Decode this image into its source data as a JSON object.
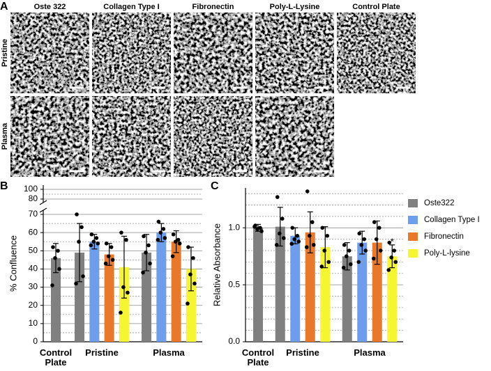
{
  "panel_a": {
    "label": "A",
    "columns": [
      "Oste 322",
      "Collagen Type I",
      "Fibronectin",
      "Poly-L-Lysine",
      "Control Plate"
    ],
    "rows": [
      "Pristine",
      "Plasma"
    ]
  },
  "chart_data": [
    {
      "type": "bar",
      "panel_label": "B",
      "y_label": "% Confluence",
      "categories": [
        "Control Plate",
        "Pristine",
        "Plasma"
      ],
      "ylim": [
        0,
        100
      ],
      "y_segments": [
        [
          0,
          70
        ],
        [
          80,
          100
        ]
      ],
      "yticks": [
        0,
        10,
        20,
        30,
        40,
        50,
        60,
        70,
        80,
        100
      ],
      "minor_gridlines": [
        5,
        15,
        25,
        35,
        45,
        55,
        65,
        90
      ],
      "grid": true,
      "series": [
        {
          "color": "#808080",
          "values": [
            46,
            49,
            49
          ],
          "errors": [
            8,
            16,
            10
          ],
          "points": [
            [
              52,
              50,
              46,
              40,
              31
            ],
            [
              70,
              63,
              55,
              36,
              32
            ],
            [
              58,
              53,
              49,
              43,
              38
            ]
          ]
        },
        {
          "color": "#6d9eeb",
          "values": [
            null,
            55,
            60
          ],
          "errors": [
            null,
            4,
            5
          ],
          "points": [
            null,
            [
              59,
              57,
              55,
              54,
              53
            ],
            [
              66,
              62,
              60,
              57,
              56
            ]
          ]
        },
        {
          "color": "#e8782a",
          "values": [
            null,
            48,
            55
          ],
          "errors": [
            null,
            6,
            6
          ],
          "points": [
            null,
            [
              54,
              52,
              47,
              45,
              43
            ],
            [
              59,
              56,
              55,
              54,
              47
            ]
          ]
        },
        {
          "color": "#f5f532",
          "values": [
            null,
            41,
            40
          ],
          "errors": [
            null,
            17,
            12
          ],
          "points": [
            null,
            [
              60,
              56,
              30,
              27,
              16
            ],
            [
              52,
              46,
              37,
              32,
              21
            ]
          ]
        }
      ]
    },
    {
      "type": "bar",
      "panel_label": "C",
      "y_label": "Relative Absorbance",
      "categories": [
        "Control Plate",
        "Pristine",
        "Plasma"
      ],
      "ylim": [
        0,
        1.35
      ],
      "yticks": [
        {
          "value": 0,
          "label": "0.0"
        },
        0.5,
        {
          "value": 1,
          "label": "1.0"
        }
      ],
      "minor_gridlines": [
        0.1,
        0.2,
        0.3,
        0.4,
        0.6,
        0.7,
        0.8,
        0.9,
        1.1,
        1.2,
        1.3
      ],
      "grid": true,
      "legend": "right",
      "annotations": [
        "*"
      ],
      "series": [
        {
          "name": "Oste322",
          "color": "#808080",
          "values": [
            1.0,
            1.01,
            0.75
          ],
          "errors": [
            0.03,
            0.17,
            0.12
          ],
          "points": [
            [
              1.02,
              1.0,
              0.99,
              0.97,
              1.01
            ],
            [
              1.27,
              1.08,
              0.95,
              0.91,
              0.85
            ],
            [
              0.85,
              0.8,
              0.75,
              0.68,
              0.65
            ]
          ]
        },
        {
          "name": "Collagen Type I",
          "color": "#6d9eeb",
          "values": [
            null,
            0.93,
            0.87
          ],
          "errors": [
            null,
            0.07,
            0.1
          ],
          "points": [
            null,
            [
              1.0,
              0.93,
              0.9,
              0.88,
              0.86
            ],
            [
              0.95,
              0.9,
              0.85,
              0.8,
              0.7
            ]
          ]
        },
        {
          "name": "Fibronectin",
          "color": "#e8782a",
          "values": [
            null,
            0.96,
            0.87
          ],
          "errors": [
            null,
            0.18,
            0.19
          ],
          "points": [
            null,
            [
              1.32,
              1.05,
              0.93,
              0.85,
              0.83
            ],
            [
              1.05,
              1.0,
              0.9,
              0.8,
              0.73
            ]
          ]
        },
        {
          "name": "Poly-L-lysine",
          "color": "#f5f532",
          "values": [
            null,
            0.83,
            0.75
          ],
          "errors": [
            null,
            0.18,
            0.1
          ],
          "points": [
            null,
            [
              1.0,
              0.93,
              0.8,
              0.7,
              0.66
            ],
            [
              0.87,
              0.8,
              0.74,
              0.7,
              0.63
            ]
          ]
        }
      ]
    }
  ]
}
